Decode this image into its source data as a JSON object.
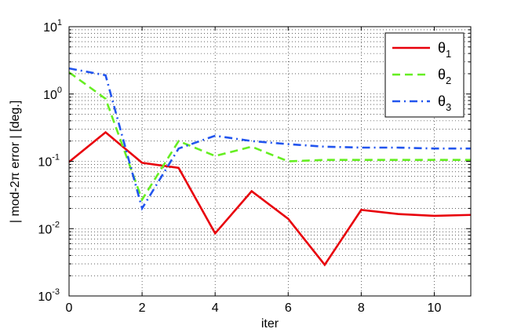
{
  "chart_data": {
    "type": "line",
    "title": "",
    "xlabel": "iter",
    "ylabel": "| mod-2π error | [deg.]",
    "xlim": [
      0,
      11
    ],
    "ylim": [
      0.001,
      10
    ],
    "yscale": "log",
    "grid": true,
    "legend_position": "top-right",
    "x_ticks": [
      0,
      2,
      4,
      6,
      8,
      10
    ],
    "x_tick_labels": [
      "0",
      "2",
      "4",
      "6",
      "8",
      "10"
    ],
    "y_ticks": [
      {
        "value": 0.001,
        "base": "10",
        "exp": "-3"
      },
      {
        "value": 0.01,
        "base": "10",
        "exp": "-2"
      },
      {
        "value": 0.1,
        "base": "10",
        "exp": "-1"
      },
      {
        "value": 1,
        "base": "10",
        "exp": "0"
      },
      {
        "value": 10,
        "base": "10",
        "exp": "1"
      }
    ],
    "x": [
      0,
      1,
      2,
      3,
      4,
      5,
      6,
      7,
      8,
      9,
      10,
      11
    ],
    "series": [
      {
        "name": "θ1",
        "name_base": "θ",
        "name_sub": "1",
        "color": "#e8000b",
        "style": "solid",
        "values": [
          0.098,
          0.27,
          0.095,
          0.08,
          0.0085,
          0.036,
          0.014,
          0.0029,
          0.019,
          0.0165,
          0.0155,
          0.016
        ]
      },
      {
        "name": "θ2",
        "name_base": "θ",
        "name_sub": "2",
        "color": "#66ee22",
        "style": "dashed",
        "values": [
          2.1,
          0.85,
          0.027,
          0.2,
          0.12,
          0.165,
          0.1,
          0.105,
          0.105,
          0.105,
          0.105,
          0.105
        ]
      },
      {
        "name": "θ3",
        "name_base": "θ",
        "name_sub": "3",
        "color": "#2255ee",
        "style": "dashdot",
        "values": [
          2.4,
          1.9,
          0.02,
          0.155,
          0.24,
          0.2,
          0.18,
          0.165,
          0.16,
          0.16,
          0.155,
          0.155
        ]
      }
    ]
  }
}
